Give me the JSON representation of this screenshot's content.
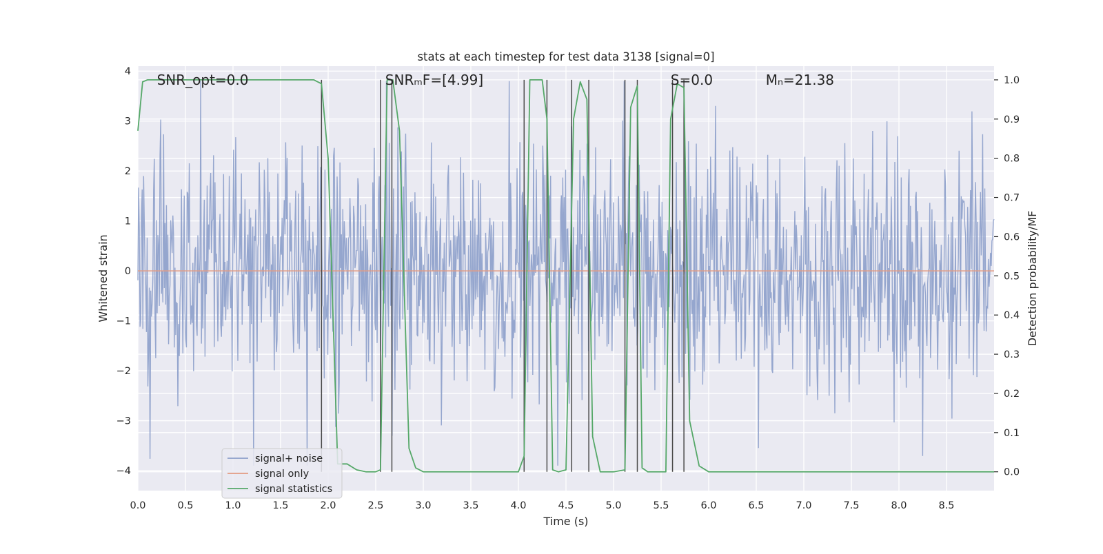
{
  "chart_data": {
    "type": "line",
    "title": "stats at each timestep for test data 3138 [signal=0]",
    "xlabel": "Time (s)",
    "ylabel_left": "Whitened strain",
    "ylabel_right": "Detection probability/MF",
    "xlim": [
      0.0,
      9.0
    ],
    "ylim_left": [
      -4.4,
      4.1
    ],
    "ylim_right": [
      -0.048,
      1.035
    ],
    "xticks": [
      "0.0",
      "0.5",
      "1.0",
      "1.5",
      "2.0",
      "2.5",
      "3.0",
      "3.5",
      "4.0",
      "4.5",
      "5.0",
      "5.5",
      "6.0",
      "6.5",
      "7.0",
      "7.5",
      "8.0",
      "8.5"
    ],
    "yticks_left": [
      "4",
      "3",
      "2",
      "1",
      "0",
      "−1",
      "−2",
      "−3",
      "−4"
    ],
    "yticks_right": [
      "1.0",
      "0.9",
      "0.8",
      "0.7",
      "0.6",
      "0.5",
      "0.4",
      "0.3",
      "0.2",
      "0.1",
      "0.0"
    ],
    "grid": true,
    "legend_position": "lower-left",
    "annotations": [
      {
        "id": "snr-opt",
        "text": "SNR_opt=0.0",
        "x": 0.2
      },
      {
        "id": "snr-mf",
        "text": "SNRₘF=[4.99]",
        "x": 2.6
      },
      {
        "id": "s",
        "text": "S=0.0",
        "x": 5.6
      },
      {
        "id": "mc",
        "text": "Mₙ=21.38",
        "x": 6.6
      }
    ],
    "series": [
      {
        "name": "signal+ noise",
        "axis": "left",
        "color": "#8c9fca",
        "style": "dense-noise",
        "amplitude_range": [
          -3.9,
          3.8
        ],
        "sample_count": 1200
      },
      {
        "name": "signal only",
        "axis": "left",
        "color": "#e39b82",
        "x": [
          0.0,
          9.0
        ],
        "y": [
          0.0,
          0.0
        ]
      },
      {
        "name": "signal statistics",
        "axis": "right",
        "color": "#55a868",
        "x": [
          0.0,
          0.05,
          0.1,
          0.3,
          0.5,
          1.0,
          1.5,
          1.85,
          1.93,
          2.0,
          2.1,
          2.2,
          2.3,
          2.4,
          2.5,
          2.55,
          2.62,
          2.68,
          2.75,
          2.85,
          2.92,
          3.0,
          3.1,
          3.5,
          4.0,
          4.06,
          4.12,
          4.2,
          4.25,
          4.3,
          4.36,
          4.42,
          4.5,
          4.58,
          4.65,
          4.72,
          4.78,
          4.86,
          5.0,
          5.12,
          5.18,
          5.25,
          5.3,
          5.36,
          5.55,
          5.6,
          5.67,
          5.74,
          5.8,
          5.9,
          6.0,
          6.5,
          7.0,
          7.5,
          8.0,
          8.5,
          9.0
        ],
        "y": [
          0.87,
          0.995,
          1.0,
          1.0,
          1.0,
          1.0,
          1.0,
          1.0,
          0.99,
          0.8,
          0.02,
          0.02,
          0.005,
          0.0,
          0.0,
          0.005,
          1.0,
          1.0,
          0.87,
          0.06,
          0.01,
          0.0,
          0.0,
          0.0,
          0.0,
          0.04,
          1.0,
          1.0,
          1.0,
          0.9,
          0.005,
          0.0,
          0.005,
          0.9,
          0.995,
          0.95,
          0.09,
          0.0,
          0.0,
          0.005,
          0.93,
          0.985,
          0.01,
          0.0,
          0.0,
          0.9,
          0.99,
          0.98,
          0.13,
          0.015,
          0.0,
          0.0,
          0.0,
          0.0,
          0.0,
          0.0,
          0.0
        ]
      }
    ],
    "vertical_markers": {
      "color": "#4a4a4a",
      "x": [
        1.93,
        2.55,
        2.67,
        4.06,
        4.3,
        4.56,
        4.74,
        5.12,
        5.25,
        5.62,
        5.74
      ]
    }
  }
}
